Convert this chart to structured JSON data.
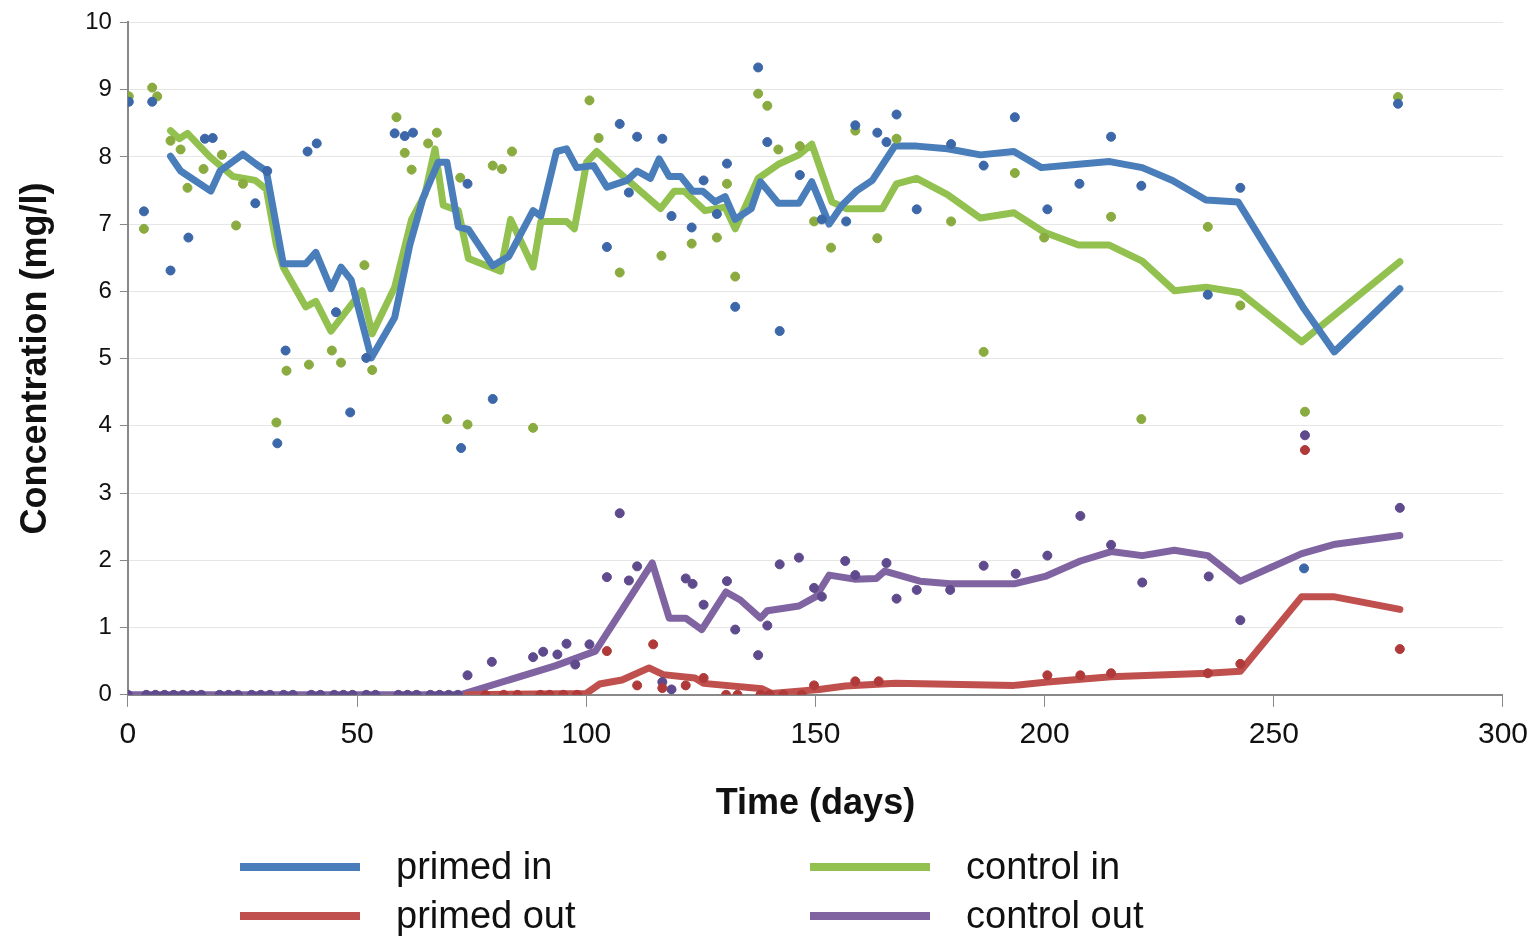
{
  "chart_data": {
    "type": "line",
    "xlabel": "Time (days)",
    "ylabel": "Concentration (mg/l)",
    "xlim": [
      0,
      300
    ],
    "xticks": [
      0,
      50,
      100,
      150,
      200,
      250,
      300
    ],
    "ylim": [
      0,
      10
    ],
    "yticks": [
      0,
      1,
      2,
      3,
      4,
      5,
      6,
      7,
      8,
      9,
      10
    ],
    "grid": "y",
    "legend": "bottom",
    "line_style": "solid",
    "series": [
      {
        "name": "primed in",
        "marker": "none",
        "color": "#4a7ebb",
        "x": [
          9.3,
          11.5,
          18.1,
          20.1,
          25.1,
          28,
          30.2,
          33.9,
          38.8,
          41,
          44.3,
          46.5,
          48.7,
          53.1,
          58.2,
          61.5,
          64.4,
          67.7,
          69.6,
          72.1,
          74.3,
          79.6,
          83.1,
          88.4,
          90.1,
          93.5,
          95.7,
          97.9,
          101.6,
          104.5,
          108.9,
          111.1,
          114,
          115.9,
          118.1,
          120.6,
          123.2,
          125.4,
          128.1,
          130.3,
          132.5,
          136,
          138,
          141.9,
          146.4,
          149.2,
          153,
          155.8,
          158.9,
          162.4,
          167.3,
          172.1,
          178.8,
          186,
          193.3,
          199.3,
          207.4,
          214.2,
          221.3,
          227.9,
          235.2,
          242.2,
          256.6,
          263.2,
          277.5
        ],
        "values": [
          8.01,
          7.79,
          7.49,
          7.79,
          8.04,
          7.89,
          7.79,
          6.41,
          6.41,
          6.58,
          6.04,
          6.36,
          6.17,
          5.01,
          5.61,
          6.69,
          7.39,
          7.92,
          7.92,
          6.96,
          6.92,
          6.38,
          6.52,
          7.2,
          7.12,
          8.08,
          8.12,
          7.84,
          7.87,
          7.55,
          7.65,
          7.79,
          7.68,
          7.97,
          7.71,
          7.71,
          7.49,
          7.49,
          7.33,
          7.41,
          7.07,
          7.23,
          7.63,
          7.31,
          7.31,
          7.63,
          7.0,
          7.28,
          7.49,
          7.65,
          8.16,
          8.16,
          8.12,
          8.03,
          8.08,
          7.84,
          7.89,
          7.93,
          7.84,
          7.65,
          7.36,
          7.33,
          5.74,
          5.1,
          6.04
        ]
      },
      {
        "name": "control in",
        "marker": "none",
        "color": "#92c150",
        "x": [
          9.3,
          11.2,
          13,
          17.9,
          22.9,
          27.8,
          30.2,
          32.4,
          33.9,
          38.8,
          41,
          44.3,
          51.1,
          53.3,
          58.2,
          61.9,
          64.8,
          67,
          68.8,
          72.1,
          74.3,
          81.3,
          83.5,
          88.4,
          90.1,
          95.7,
          97.4,
          100.1,
          102.3,
          107.3,
          116.2,
          119.2,
          121.4,
          125.9,
          130.3,
          132.5,
          137.5,
          141.9,
          146.4,
          149.2,
          153.6,
          156.7,
          164.6,
          167.7,
          172.1,
          178.8,
          186,
          193.3,
          199.9,
          207.4,
          214,
          221.3,
          228.3,
          235.2,
          242.7,
          256.1,
          277.5
        ],
        "values": [
          8.39,
          8.27,
          8.35,
          8.0,
          7.71,
          7.65,
          7.52,
          6.69,
          6.36,
          5.77,
          5.85,
          5.41,
          6.01,
          5.37,
          6.06,
          7.07,
          7.44,
          8.12,
          7.28,
          7.2,
          6.49,
          6.3,
          7.07,
          6.36,
          7.04,
          7.04,
          6.93,
          7.92,
          8.08,
          7.76,
          7.23,
          7.49,
          7.49,
          7.2,
          7.25,
          6.93,
          7.68,
          7.89,
          8.03,
          8.19,
          7.33,
          7.23,
          7.23,
          7.6,
          7.68,
          7.44,
          7.09,
          7.17,
          6.88,
          6.69,
          6.69,
          6.45,
          6.01,
          6.06,
          5.98,
          5.25,
          6.44
        ]
      },
      {
        "name": "primed out",
        "marker": "none",
        "color": "#c0504d",
        "x": [
          74,
          100,
          102.9,
          107.8,
          113.7,
          116.8,
          123.7,
          125.6,
          138.4,
          140.4,
          150.8,
          156.5,
          167.5,
          193.3,
          200.6,
          214.5,
          235.6,
          242.7,
          256.1,
          263,
          277.5
        ],
        "values": [
          0,
          0.02,
          0.16,
          0.22,
          0.4,
          0.3,
          0.25,
          0.17,
          0.09,
          0.02,
          0.08,
          0.13,
          0.17,
          0.14,
          0.19,
          0.27,
          0.32,
          0.35,
          1.46,
          1.46,
          1.27
        ]
      },
      {
        "name": "control out",
        "marker": "none",
        "color": "#8064a2",
        "x": [
          0,
          72.5,
          93.2,
          102,
          114.4,
          118.1,
          121.7,
          125.2,
          130.5,
          133.6,
          138,
          139.5,
          146.4,
          150.1,
          153,
          158.5,
          163.3,
          165.1,
          172.8,
          179.4,
          193.3,
          200.1,
          207.8,
          214.5,
          221.3,
          228.3,
          235.6,
          242.7,
          256.1,
          263.4,
          277.5
        ],
        "values": [
          0,
          0,
          0.43,
          0.65,
          1.96,
          1.14,
          1.14,
          0.97,
          1.53,
          1.41,
          1.14,
          1.25,
          1.32,
          1.46,
          1.78,
          1.72,
          1.73,
          1.84,
          1.69,
          1.65,
          1.65,
          1.76,
          1.99,
          2.13,
          2.07,
          2.15,
          2.07,
          1.69,
          2.1,
          2.24,
          2.37
        ]
      },
      {
        "type": "scatter",
        "marker": "circle",
        "color": "#3c67a8",
        "x": [
          0.2,
          3.5,
          5.3,
          9.3,
          13.2,
          16.8,
          18.5,
          27.8,
          30.4,
          32.6,
          34.4,
          39.2,
          41.2,
          45.4,
          48.5,
          52,
          58.2,
          60.4,
          62.2,
          72.7,
          74.1,
          79.6,
          104.5,
          107.3,
          109.3,
          111.1,
          116.6,
          118.6,
          123,
          125.6,
          128.5,
          130.7,
          132.5,
          137.5,
          139.5,
          142.2,
          146.6,
          151.4,
          156.7,
          158.7,
          163.5,
          165.5,
          167.7,
          172.1,
          179.6,
          186.7,
          193.5,
          200.6,
          207.6,
          214.5,
          221.1,
          235.6,
          242.7,
          256.6,
          277.1
        ],
        "values": [
          8.82,
          7.19,
          8.82,
          6.31,
          6.8,
          8.27,
          8.28,
          7.31,
          7.79,
          3.74,
          5.12,
          8.08,
          8.2,
          5.69,
          4.2,
          5.01,
          8.35,
          8.31,
          8.36,
          3.67,
          7.6,
          4.4,
          6.66,
          8.49,
          7.47,
          8.3,
          8.27,
          7.12,
          6.95,
          7.65,
          7.15,
          7.9,
          5.77,
          9.33,
          8.22,
          5.41,
          7.73,
          7.07,
          7.04,
          8.47,
          8.36,
          8.22,
          8.63,
          7.22,
          8.19,
          7.87,
          8.59,
          7.22,
          7.6,
          8.3,
          7.57,
          5.95,
          7.54,
          1.88,
          8.79
        ]
      },
      {
        "type": "scatter",
        "marker": "circle",
        "color": "#8aab3f",
        "x": [
          0.2,
          3.5,
          5.3,
          6.4,
          9.3,
          11.5,
          13,
          16.5,
          20.5,
          23.6,
          25.1,
          32.4,
          34.6,
          39.5,
          44.5,
          46.5,
          51.6,
          53.3,
          58.6,
          60.4,
          61.9,
          65.5,
          67.4,
          69.6,
          72.5,
          74.1,
          79.6,
          81.6,
          83.8,
          88.4,
          100.7,
          102.7,
          107.3,
          116.4,
          123,
          128.5,
          130.7,
          132.5,
          137.5,
          139.5,
          141.9,
          146.6,
          149.7,
          153.4,
          158.7,
          163.5,
          167.7,
          179.6,
          186.7,
          193.5,
          199.9,
          214.5,
          221.1,
          235.6,
          242.7,
          256.8,
          277.1
        ],
        "values": [
          8.9,
          6.93,
          9.03,
          8.9,
          8.24,
          8.11,
          7.54,
          7.82,
          8.03,
          6.98,
          7.6,
          4.05,
          4.82,
          4.91,
          5.12,
          4.94,
          6.39,
          4.83,
          8.59,
          8.06,
          7.81,
          8.2,
          8.36,
          4.1,
          7.69,
          4.02,
          7.87,
          7.82,
          8.08,
          3.97,
          8.84,
          8.28,
          6.28,
          6.53,
          6.71,
          6.8,
          7.6,
          6.22,
          8.94,
          8.76,
          8.11,
          8.16,
          7.04,
          6.65,
          8.39,
          6.79,
          8.27,
          7.04,
          5.1,
          7.76,
          6.8,
          7.11,
          4.1,
          6.96,
          5.79,
          4.21,
          8.89
        ]
      },
      {
        "type": "scatter",
        "marker": "circle",
        "color": "#b03a3a",
        "x": [
          78,
          82,
          85,
          90,
          92,
          95,
          98,
          104.5,
          111.1,
          114.6,
          116.6,
          121.7,
          125.6,
          130.5,
          133,
          138,
          140,
          143,
          147,
          149.7,
          158.7,
          163.8,
          200.6,
          207.8,
          214.5,
          235.6,
          242.7,
          256.8,
          277.5
        ],
        "values": [
          0,
          0,
          0,
          0,
          0,
          0,
          0,
          0.65,
          0.14,
          0.75,
          0.1,
          0.14,
          0.25,
          0,
          0,
          0,
          0,
          0,
          0,
          0.14,
          0.2,
          0.2,
          0.29,
          0.29,
          0.32,
          0.32,
          0.46,
          3.64,
          0.68
        ]
      },
      {
        "type": "scatter",
        "marker": "circle",
        "color": "#5e4a8c",
        "x": [
          0,
          4,
          6,
          8,
          10,
          12,
          14,
          16,
          20,
          22,
          24,
          27,
          29,
          31,
          34,
          36,
          40,
          42,
          45,
          47,
          49,
          52,
          54,
          59,
          61,
          63,
          66,
          68,
          70,
          72,
          74.1,
          79.4,
          88.4,
          90.6,
          93.7,
          95.7,
          97.6,
          100.7,
          104.5,
          107.3,
          109.3,
          111.1,
          116.6,
          118.6,
          121.7,
          123.2,
          125.6,
          130.7,
          132.5,
          137.5,
          139.5,
          142.2,
          146.4,
          149.7,
          151.4,
          156.5,
          158.7,
          165.5,
          167.7,
          172.1,
          179.4,
          186.7,
          193.7,
          200.6,
          207.8,
          214.5,
          221.3,
          235.8,
          242.7,
          256.8,
          277.5
        ],
        "values": [
          0,
          0,
          0,
          0,
          0,
          0,
          0,
          0,
          0,
          0,
          0,
          0,
          0,
          0,
          0,
          0,
          0,
          0,
          0,
          0,
          0,
          0,
          0,
          0,
          0,
          0,
          0,
          0,
          0,
          0,
          0.29,
          0.49,
          0.56,
          0.64,
          0.6,
          0.76,
          0.45,
          0.75,
          1.75,
          2.7,
          1.7,
          1.91,
          0.19,
          0.08,
          1.73,
          1.65,
          1.34,
          1.69,
          0.97,
          0.59,
          1.03,
          1.94,
          2.04,
          1.59,
          1.46,
          1.99,
          1.78,
          1.96,
          1.43,
          1.56,
          1.56,
          1.92,
          1.8,
          2.07,
          2.66,
          2.23,
          1.67,
          1.76,
          1.11,
          3.86,
          2.78
        ]
      }
    ]
  }
}
